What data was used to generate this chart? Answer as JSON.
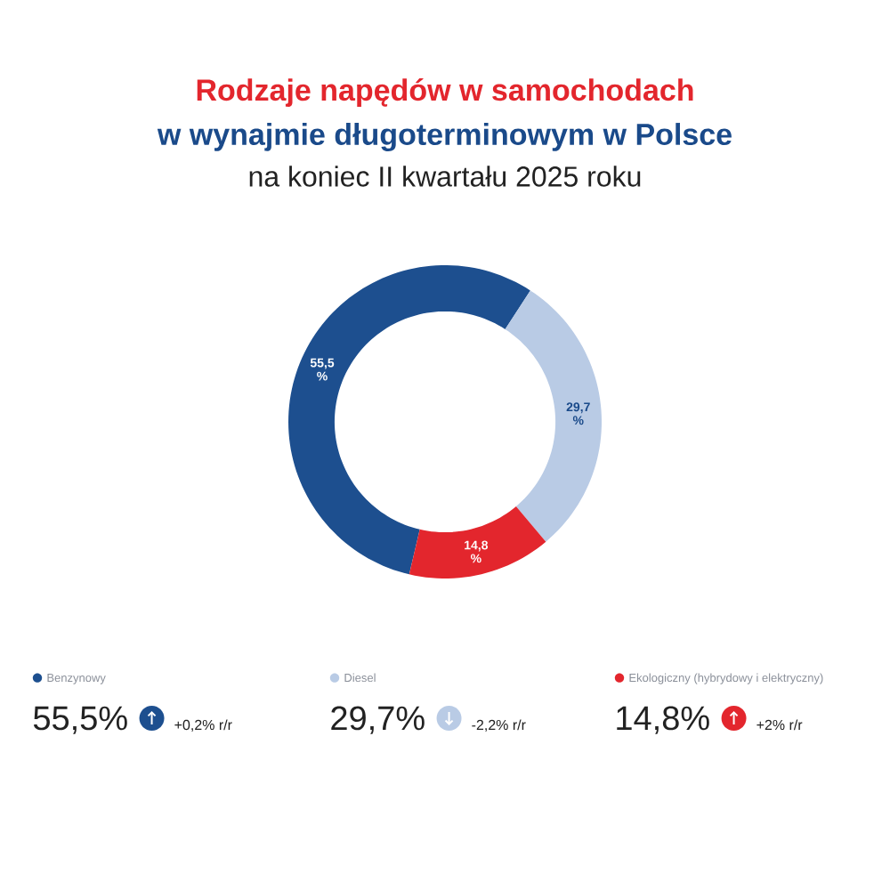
{
  "chart_data": {
    "type": "donut",
    "title": "Rodzaje napędów w samochodach",
    "subtitle": "w wynajmie długoterminowym w Polsce",
    "categories": [
      "Benzynowy",
      "Diesel",
      "Ekologiczny (hybrydowy i elektryczny)"
    ],
    "values": [
      55.5,
      29.7,
      14.8
    ],
    "colors": [
      "#1d4f8f",
      "#b9cbe5",
      "#e3262d"
    ],
    "value_labels": [
      "55,5 %",
      "29,7 %",
      "14,8 %"
    ],
    "legend": "bottom",
    "annotations": [
      "na koniec II kwartału 2025 roku",
      "55,5%",
      "29,7%",
      "14,8%",
      "+0,2% r/r",
      "-2,2% r/r",
      "+2% r/r"
    ]
  }
}
